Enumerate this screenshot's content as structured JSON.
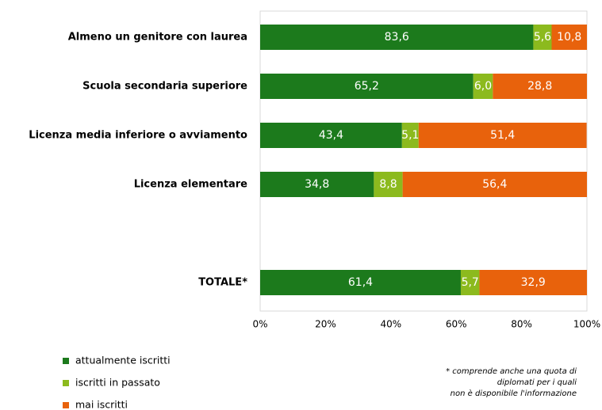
{
  "chart_data": {
    "type": "stacked-bar-horizontal",
    "categories": [
      "Almeno un genitore con laurea",
      "Scuola secondaria superiore",
      "Licenza media inferiore o avviamento",
      "Licenza elementare",
      null,
      "TOTALE*"
    ],
    "series": [
      {
        "name": "attualmente iscritti",
        "color": "#1c7a1c",
        "values": [
          83.6,
          65.2,
          43.4,
          34.8,
          null,
          61.4
        ],
        "value_labels": [
          "83,6",
          "65,2",
          "43,4",
          "34,8",
          null,
          "61,4"
        ]
      },
      {
        "name": "iscritti in passato",
        "color": "#8cba1e",
        "values": [
          5.6,
          6.0,
          5.1,
          8.8,
          null,
          5.7
        ],
        "value_labels": [
          "5,6",
          "6,0",
          "5,1",
          "8,8",
          null,
          "5,7"
        ]
      },
      {
        "name": "mai iscritti",
        "color": "#e8620c",
        "values": [
          10.8,
          28.8,
          51.4,
          56.4,
          null,
          32.9
        ],
        "value_labels": [
          "10,8",
          "28,8",
          "51,4",
          "56,4",
          null,
          "32,9"
        ]
      }
    ],
    "xlim": [
      0,
      100
    ],
    "xticks": [
      {
        "value": 0,
        "label": "0%"
      },
      {
        "value": 20,
        "label": "20%"
      },
      {
        "value": 40,
        "label": "40%"
      },
      {
        "value": 60,
        "label": "60%"
      },
      {
        "value": 80,
        "label": "80%"
      },
      {
        "value": 100,
        "label": "100%"
      }
    ],
    "note": [
      "* comprende anche una quota di",
      "diplomati per i quali",
      "non è disponibile  l'informazione"
    ]
  }
}
